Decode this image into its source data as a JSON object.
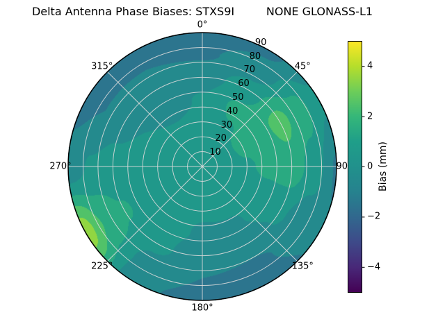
{
  "figure": {
    "background": "#ffffff"
  },
  "chart_data": {
    "type": "heatmap",
    "projection": "polar",
    "title": "Delta Antenna Phase Biases: STXS9I         NONE GLONASS-L1",
    "grid": true,
    "grid_color": "#d9d9d9",
    "theta_ticks": [
      {
        "angle": 0,
        "label": "0°"
      },
      {
        "angle": 45,
        "label": "45°"
      },
      {
        "angle": 90,
        "label": "90°"
      },
      {
        "angle": 135,
        "label": "135°"
      },
      {
        "angle": 180,
        "label": "180°"
      },
      {
        "angle": 225,
        "label": "225°"
      },
      {
        "angle": 270,
        "label": "270°"
      },
      {
        "angle": 315,
        "label": "315°"
      }
    ],
    "r_ticks": [
      {
        "value": 10,
        "label": "10"
      },
      {
        "value": 20,
        "label": "20"
      },
      {
        "value": 30,
        "label": "30"
      },
      {
        "value": 40,
        "label": "40"
      },
      {
        "value": 50,
        "label": "50"
      },
      {
        "value": 60,
        "label": "60"
      },
      {
        "value": 70,
        "label": "70"
      },
      {
        "value": 80,
        "label": "80"
      },
      {
        "value": 90,
        "label": "90"
      }
    ],
    "r_max": 90,
    "r_label_angle_deg": 22.5,
    "band_width_mm": 1,
    "azimuth_deg": [
      0,
      30,
      60,
      90,
      120,
      150,
      180,
      210,
      240,
      270,
      300,
      330,
      360
    ],
    "zenith_deg": [
      0,
      15,
      30,
      45,
      60,
      75,
      90
    ],
    "bias_mm": [
      [
        0.4,
        0.4,
        0.3,
        0.1,
        -0.4,
        -1.1,
        -1.5
      ],
      [
        0.4,
        0.5,
        0.9,
        1.2,
        0.4,
        -0.6,
        -1.2
      ],
      [
        0.4,
        0.6,
        1.2,
        1.7,
        2.3,
        1.4,
        0.2
      ],
      [
        0.4,
        0.5,
        0.9,
        1.2,
        1.6,
        0.6,
        -1.1
      ],
      [
        0.4,
        0.3,
        0.4,
        0.5,
        0.2,
        -0.6,
        -0.9
      ],
      [
        0.4,
        0.3,
        0.2,
        -0.1,
        -0.6,
        -1.1,
        -1.2
      ],
      [
        0.4,
        0.3,
        0.1,
        -0.1,
        -0.5,
        -1.0,
        -1.4
      ],
      [
        0.4,
        0.4,
        0.4,
        0.3,
        0.2,
        -0.3,
        -0.8
      ],
      [
        0.4,
        0.4,
        0.6,
        0.7,
        1.1,
        1.9,
        3.6
      ],
      [
        0.4,
        0.4,
        0.4,
        0.5,
        0.4,
        0.1,
        -0.6
      ],
      [
        0.4,
        0.3,
        0.2,
        0.0,
        -0.4,
        -1.0,
        -1.3
      ],
      [
        0.4,
        0.3,
        0.1,
        -0.4,
        -0.5,
        -1.0,
        -1.3
      ],
      [
        0.4,
        0.4,
        0.3,
        0.1,
        -0.4,
        -1.1,
        -1.5
      ]
    ],
    "colorbar": {
      "label": "Bias (mm)",
      "vmin": -5,
      "vmax": 5,
      "ticks": [
        {
          "value": 4,
          "label": "4"
        },
        {
          "value": 2,
          "label": "2"
        },
        {
          "value": 0,
          "label": "0"
        },
        {
          "value": -2,
          "label": "−2"
        },
        {
          "value": -4,
          "label": "−4"
        }
      ],
      "colormap": "viridis",
      "colormap_stops": [
        {
          "t": 0.0,
          "color": "#440154"
        },
        {
          "t": 0.1,
          "color": "#482878"
        },
        {
          "t": 0.2,
          "color": "#3e4a89"
        },
        {
          "t": 0.3,
          "color": "#31688e"
        },
        {
          "t": 0.4,
          "color": "#26828e"
        },
        {
          "t": 0.5,
          "color": "#21918c"
        },
        {
          "t": 0.6,
          "color": "#1f9e89"
        },
        {
          "t": 0.7,
          "color": "#35b779"
        },
        {
          "t": 0.8,
          "color": "#6dcd59"
        },
        {
          "t": 0.9,
          "color": "#b5de2b"
        },
        {
          "t": 1.0,
          "color": "#fde725"
        }
      ]
    }
  }
}
